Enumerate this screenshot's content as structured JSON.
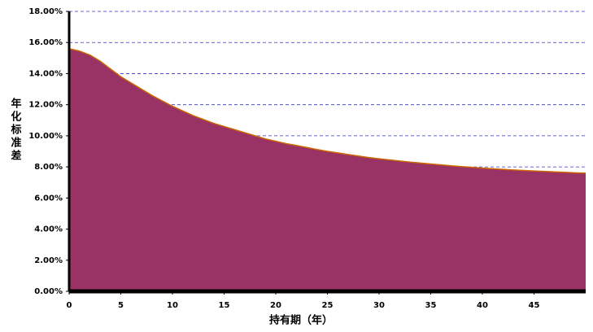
{
  "chart_data": {
    "type": "area",
    "x": [
      0,
      1,
      2,
      3,
      4,
      5,
      6,
      7,
      8,
      9,
      10,
      11,
      12,
      13,
      14,
      15,
      16,
      17,
      18,
      19,
      20,
      21,
      22,
      23,
      24,
      25,
      26,
      27,
      28,
      29,
      30,
      31,
      32,
      33,
      34,
      35,
      36,
      37,
      38,
      39,
      40,
      41,
      42,
      43,
      44,
      45,
      46,
      47,
      48,
      49,
      50
    ],
    "values": [
      15.6,
      15.45,
      15.2,
      14.8,
      14.3,
      13.8,
      13.4,
      13.0,
      12.6,
      12.25,
      11.9,
      11.6,
      11.3,
      11.05,
      10.8,
      10.6,
      10.4,
      10.2,
      10.0,
      9.8,
      9.65,
      9.5,
      9.38,
      9.25,
      9.12,
      9.0,
      8.9,
      8.8,
      8.7,
      8.6,
      8.52,
      8.45,
      8.38,
      8.31,
      8.25,
      8.19,
      8.13,
      8.07,
      8.02,
      7.97,
      7.92,
      7.88,
      7.84,
      7.8,
      7.77,
      7.74,
      7.71,
      7.68,
      7.65,
      7.62,
      7.6
    ],
    "color": "#993366",
    "edge_color": "#cc6600",
    "xlabel": "持有期（年）",
    "ylabel": "年化标准差",
    "xlim": [
      0,
      50
    ],
    "xticks": [
      0,
      5,
      10,
      15,
      20,
      25,
      30,
      35,
      40,
      45
    ],
    "ylim": [
      0,
      18
    ],
    "yticks": [
      {
        "value": 0,
        "label": "0.00%"
      },
      {
        "value": 2,
        "label": "2.00%"
      },
      {
        "value": 4,
        "label": "4.00%"
      },
      {
        "value": 6,
        "label": "6.00%"
      },
      {
        "value": 8,
        "label": "8.00%"
      },
      {
        "value": 10,
        "label": "10.00%"
      },
      {
        "value": 12,
        "label": "12.00%"
      },
      {
        "value": 14,
        "label": "14.00%"
      },
      {
        "value": 16,
        "label": "16.00%"
      },
      {
        "value": 18,
        "label": "18.00%"
      }
    ],
    "grid": true,
    "grid_color": "#3333cc"
  }
}
